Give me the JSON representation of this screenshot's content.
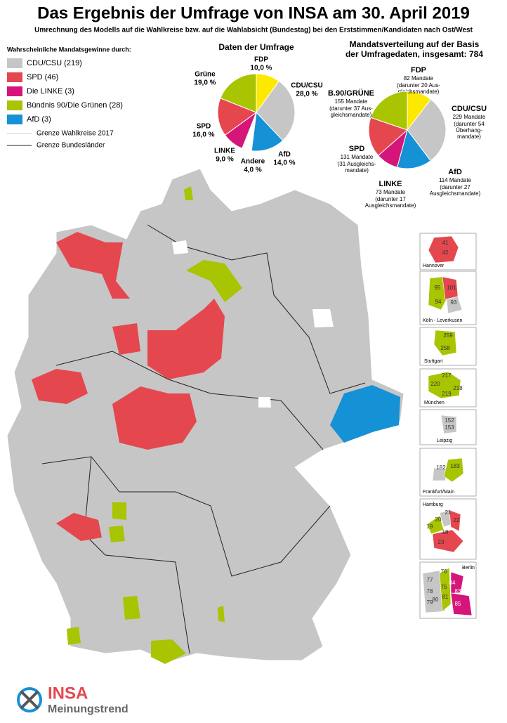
{
  "title": "Das Ergebnis der Umfrage von INSA am 30. April 2019",
  "subtitle": "Umrechnung des Modells auf die Wahlkreise bzw. auf die Wahlabsicht (Bundestag) bei den Erststimmen/Kandidaten nach Ost/West",
  "legend": {
    "title": "Wahrscheinliche Mandatsgewinne durch:",
    "items": [
      {
        "label": "CDU/CSU (219)",
        "color": "#c6c6c6"
      },
      {
        "label": "SPD (46)",
        "color": "#e5474f"
      },
      {
        "label": "Die LINKE (3)",
        "color": "#d5157a"
      },
      {
        "label": "Bündnis 90/Die Grünen (28)",
        "color": "#a9c400"
      },
      {
        "label": "AfD (3)",
        "color": "#1591d5"
      }
    ],
    "lines": [
      "Grenze Wahlkreise 2017",
      "Grenze Bundesländer"
    ]
  },
  "chart_data": [
    {
      "type": "pie",
      "title": "Daten der Umfrage",
      "categories": [
        "FDP",
        "CDU/CSU",
        "AfD",
        "Andere",
        "LINKE",
        "SPD",
        "Grüne"
      ],
      "values": [
        10,
        28,
        14,
        4,
        9,
        16,
        19
      ],
      "value_labels": [
        "10,0 %",
        "28,0 %",
        "14,0 %",
        "4,0 %",
        "9,0 %",
        "16,0 %",
        "19,0 %"
      ],
      "colors": [
        "#fde800",
        "#c6c6c6",
        "#1591d5",
        "#ffffff",
        "#d5157a",
        "#e5474f",
        "#a9c400"
      ]
    },
    {
      "type": "pie",
      "title": [
        "Mandatsverteilung auf der Basis",
        "der Umfragedaten, insgesamt: 784"
      ],
      "categories": [
        "FDP",
        "CDU/CSU",
        "AfD",
        "LINKE",
        "SPD",
        "B.90/GRÜNE"
      ],
      "values": [
        82,
        229,
        114,
        73,
        131,
        155
      ],
      "value_labels": [
        "82 Mandate",
        "229 Mandate",
        "114 Mandate",
        "73 Mandate",
        "131 Mandate",
        "155 Mandate"
      ],
      "notes": [
        [
          "(darunter 20 Aus-",
          "gleichsmandate)"
        ],
        [
          "(darunter 54",
          "Überhang-",
          "mandate)"
        ],
        [
          "(darunter 27",
          "Ausgleichsmandate)"
        ],
        [
          "(darunter 17",
          "Ausgleichsmandate)"
        ],
        [
          "(31 Ausgleichs-",
          "mandate)"
        ],
        [
          "(darunter 37 Aus-",
          "gleichsmandate)"
        ]
      ],
      "colors": [
        "#fde800",
        "#c6c6c6",
        "#1591d5",
        "#d5157a",
        "#e5474f",
        "#a9c400"
      ]
    }
  ],
  "insets": [
    {
      "name": "Hannover",
      "districts": [
        41,
        42
      ]
    },
    {
      "name": "Köln -  Leverkusen",
      "districts": [
        95,
        101,
        94,
        93
      ]
    },
    {
      "name": "Stuttgart",
      "districts": [
        259,
        258
      ]
    },
    {
      "name": "München",
      "districts": [
        217,
        220,
        218,
        219
      ]
    },
    {
      "name": "Leipzig",
      "districts": [
        152,
        153
      ]
    },
    {
      "name": "Frankfurt/Main",
      "districts": [
        182,
        183
      ]
    },
    {
      "name": "Hamburg",
      "districts": [
        20,
        21,
        22,
        19,
        18,
        23
      ]
    },
    {
      "name": "Berlin",
      "districts": [
        77,
        76,
        78,
        75,
        79,
        80,
        81,
        84,
        83,
        85
      ]
    }
  ],
  "logo": {
    "brand": "INSA",
    "tagline": "Meinungstrend"
  }
}
